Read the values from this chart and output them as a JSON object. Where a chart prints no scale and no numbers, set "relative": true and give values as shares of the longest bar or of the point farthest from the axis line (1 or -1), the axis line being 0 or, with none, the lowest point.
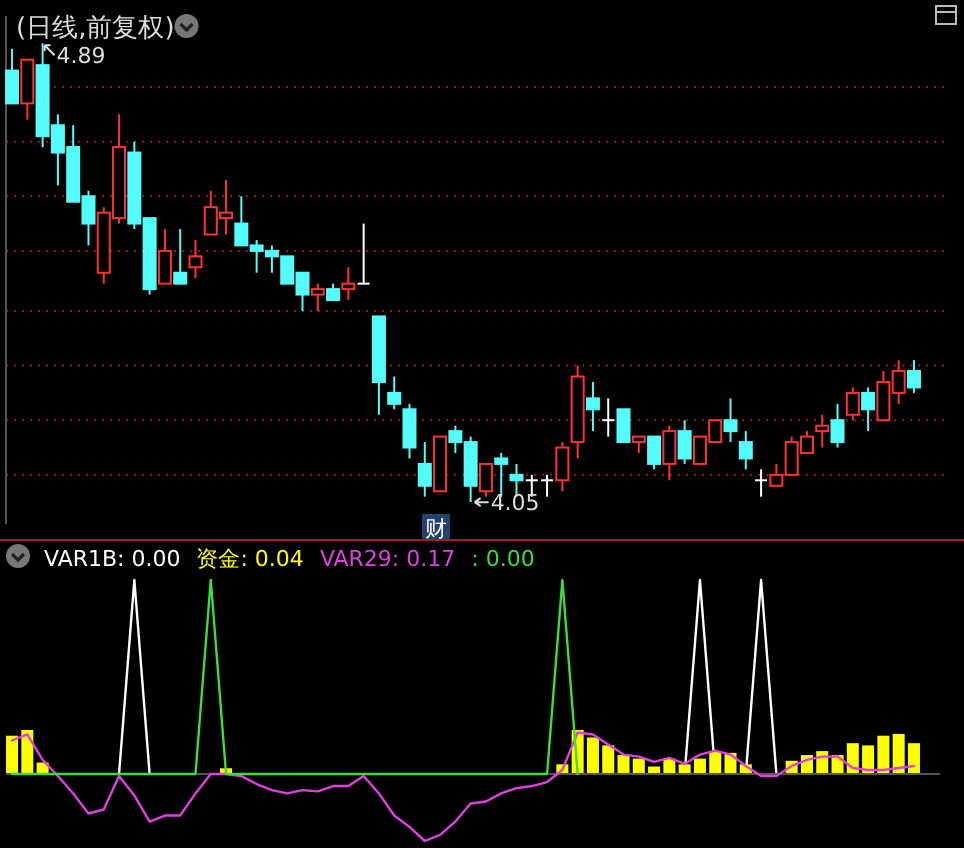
{
  "chart_data": [
    {
      "type": "candlestick",
      "title": "(日线,前复权)",
      "categories": [
        null,
        null,
        null,
        null,
        null,
        null,
        null,
        null,
        null,
        null,
        null,
        null,
        null,
        null,
        null,
        null,
        null,
        null,
        null,
        null,
        null,
        null,
        null,
        null,
        null,
        null,
        null,
        null,
        null,
        null,
        null,
        null,
        null,
        null,
        null,
        null,
        null,
        null,
        null,
        null,
        null,
        null,
        null,
        null,
        null,
        null,
        null,
        null,
        null,
        null,
        null,
        null,
        null,
        null,
        null,
        null,
        null,
        null,
        null,
        null
      ],
      "ohlc": [
        [
          4.84,
          4.88,
          4.78,
          4.78
        ],
        [
          4.78,
          4.86,
          4.75,
          4.86
        ],
        [
          4.85,
          4.89,
          4.7,
          4.72
        ],
        [
          4.74,
          4.76,
          4.63,
          4.69
        ],
        [
          4.7,
          4.74,
          4.6,
          4.6
        ],
        [
          4.61,
          4.62,
          4.52,
          4.56
        ],
        [
          4.47,
          4.59,
          4.45,
          4.58
        ],
        [
          4.57,
          4.76,
          4.56,
          4.7
        ],
        [
          4.69,
          4.71,
          4.55,
          4.56
        ],
        [
          4.57,
          4.57,
          4.43,
          4.44
        ],
        [
          4.45,
          4.55,
          4.45,
          4.51
        ],
        [
          4.47,
          4.55,
          4.45,
          4.45
        ],
        [
          4.48,
          4.53,
          4.46,
          4.5
        ],
        [
          4.54,
          4.62,
          4.54,
          4.59
        ],
        [
          4.57,
          4.64,
          4.54,
          4.58
        ],
        [
          4.56,
          4.61,
          4.52,
          4.52
        ],
        [
          4.52,
          4.53,
          4.47,
          4.51
        ],
        [
          4.51,
          4.52,
          4.47,
          4.5
        ],
        [
          4.5,
          4.5,
          4.45,
          4.45
        ],
        [
          4.47,
          4.47,
          4.4,
          4.43
        ],
        [
          4.43,
          4.45,
          4.4,
          4.44
        ],
        [
          4.44,
          4.45,
          4.42,
          4.42
        ],
        [
          4.44,
          4.48,
          4.42,
          4.45
        ],
        [
          4.45,
          4.56,
          4.45,
          4.45
        ],
        [
          4.39,
          4.39,
          4.21,
          4.27
        ],
        [
          4.25,
          4.28,
          4.22,
          4.23
        ],
        [
          4.22,
          4.23,
          4.13,
          4.15
        ],
        [
          4.12,
          4.16,
          4.06,
          4.08
        ],
        [
          4.07,
          4.17,
          4.07,
          4.17
        ],
        [
          4.18,
          4.19,
          4.14,
          4.16
        ],
        [
          4.16,
          4.17,
          4.05,
          4.08
        ],
        [
          4.07,
          4.12,
          4.06,
          4.12
        ],
        [
          4.13,
          4.14,
          4.06,
          4.12
        ],
        [
          4.1,
          4.12,
          4.06,
          4.09
        ],
        [
          4.09,
          4.1,
          4.06,
          4.09
        ],
        [
          4.09,
          4.1,
          4.06,
          4.09
        ],
        [
          4.09,
          4.16,
          4.07,
          4.15
        ],
        [
          4.16,
          4.3,
          4.13,
          4.28
        ],
        [
          4.24,
          4.27,
          4.18,
          4.22
        ],
        [
          4.2,
          4.24,
          4.17,
          4.2
        ],
        [
          4.22,
          4.22,
          4.16,
          4.16
        ],
        [
          4.16,
          4.17,
          4.14,
          4.17
        ],
        [
          4.17,
          4.17,
          4.11,
          4.12
        ],
        [
          4.12,
          4.19,
          4.09,
          4.18
        ],
        [
          4.18,
          4.2,
          4.12,
          4.13
        ],
        [
          4.12,
          4.17,
          4.12,
          4.17
        ],
        [
          4.16,
          4.2,
          4.16,
          4.2
        ],
        [
          4.2,
          4.24,
          4.16,
          4.18
        ],
        [
          4.16,
          4.18,
          4.11,
          4.13
        ],
        [
          4.09,
          4.11,
          4.06,
          4.09
        ],
        [
          4.08,
          4.12,
          4.08,
          4.1
        ],
        [
          4.1,
          4.17,
          4.1,
          4.16
        ],
        [
          4.14,
          4.18,
          4.14,
          4.17
        ],
        [
          4.18,
          4.21,
          4.15,
          4.19
        ],
        [
          4.2,
          4.23,
          4.15,
          4.16
        ],
        [
          4.21,
          4.26,
          4.2,
          4.25
        ],
        [
          4.25,
          4.26,
          4.18,
          4.22
        ],
        [
          4.2,
          4.29,
          4.2,
          4.27
        ],
        [
          4.25,
          4.31,
          4.23,
          4.29
        ],
        [
          4.29,
          4.31,
          4.25,
          4.26
        ]
      ],
      "colors": [
        "#54fcfc",
        "#ff3232",
        "#54fcfc",
        "#54fcfc",
        "#54fcfc",
        "#54fcfc",
        "#ff3232",
        "#ff3232",
        "#54fcfc",
        "#54fcfc",
        "#ff3232",
        "#54fcfc",
        "#ff3232",
        "#ff3232",
        "#ff3232",
        "#54fcfc",
        "#54fcfc",
        "#54fcfc",
        "#54fcfc",
        "#54fcfc",
        "#ff3232",
        "#54fcfc",
        "#ff3232",
        "#ffffff",
        "#54fcfc",
        "#54fcfc",
        "#54fcfc",
        "#54fcfc",
        "#ff3232",
        "#54fcfc",
        "#54fcfc",
        "#ff3232",
        "#54fcfc",
        "#54fcfc",
        "#ffffff",
        "#ffffff",
        "#ff3232",
        "#ff3232",
        "#54fcfc",
        "#ffffff",
        "#54fcfc",
        "#ff3232",
        "#54fcfc",
        "#ff3232",
        "#54fcfc",
        "#ff3232",
        "#ff3232",
        "#54fcfc",
        "#54fcfc",
        "#ffffff",
        "#ff3232",
        "#ff3232",
        "#ff3232",
        "#ff3232",
        "#54fcfc",
        "#ff3232",
        "#54fcfc",
        "#ff3232",
        "#ff3232",
        "#54fcfc"
      ],
      "ylim": [
        4.01,
        4.94
      ],
      "yticks": [
        {
          "value": 4.81,
          "label": null
        },
        {
          "value": 4.71,
          "label": null
        },
        {
          "value": 4.61,
          "label": null
        },
        {
          "value": 4.51,
          "label": null
        },
        {
          "value": 4.4,
          "label": null
        },
        {
          "value": 4.3,
          "label": null
        },
        {
          "value": 4.2,
          "label": null
        },
        {
          "value": 4.1,
          "label": null
        }
      ],
      "grid": true,
      "annotations": [
        "4.89",
        "4.05",
        "财"
      ]
    },
    {
      "type": "line",
      "relative": true,
      "legend": "top left",
      "categories": [
        null,
        null,
        null,
        null,
        null,
        null,
        null,
        null,
        null,
        null,
        null,
        null,
        null,
        null,
        null,
        null,
        null,
        null,
        null,
        null,
        null,
        null,
        null,
        null,
        null,
        null,
        null,
        null,
        null,
        null,
        null,
        null,
        null,
        null,
        null,
        null,
        null,
        null,
        null,
        null,
        null,
        null,
        null,
        null,
        null,
        null,
        null,
        null,
        null,
        null,
        null,
        null,
        null,
        null,
        null,
        null,
        null,
        null,
        null,
        null
      ],
      "series": [
        {
          "name": "VAR1B: 0.00",
          "color": "#ffffff",
          "values": [
            null,
            null,
            null,
            null,
            null,
            null,
            null,
            0,
            1,
            0,
            null,
            null,
            null,
            null,
            null,
            null,
            null,
            null,
            null,
            null,
            null,
            null,
            null,
            null,
            null,
            null,
            null,
            null,
            null,
            null,
            null,
            null,
            null,
            null,
            null,
            null,
            null,
            null,
            null,
            null,
            null,
            null,
            null,
            null,
            0,
            1,
            0,
            null,
            0,
            1,
            0,
            null,
            null,
            null,
            null,
            null,
            null,
            null,
            null,
            null
          ]
        }
      ]
    },
    {
      "type": "bar",
      "relative": true,
      "legend": "top left",
      "categories": [
        null,
        null,
        null,
        null,
        null,
        null,
        null,
        null,
        null,
        null,
        null,
        null,
        null,
        null,
        null,
        null,
        null,
        null,
        null,
        null,
        null,
        null,
        null,
        null,
        null,
        null,
        null,
        null,
        null,
        null,
        null,
        null,
        null,
        null,
        null,
        null,
        null,
        null,
        null,
        null,
        null,
        null,
        null,
        null,
        null,
        null,
        null,
        null,
        null,
        null,
        null,
        null,
        null,
        null,
        null,
        null,
        null,
        null,
        null,
        null
      ],
      "series": [
        {
          "name": "资金: 0.04",
          "color": "#ffff00",
          "values": [
            0.87,
            1,
            0.26,
            0,
            0,
            0,
            0,
            0,
            0,
            0,
            0,
            0,
            0,
            0,
            0.13,
            0,
            0,
            0,
            0,
            0,
            0,
            0,
            0,
            0,
            0,
            0,
            0,
            0,
            0,
            0,
            0,
            0,
            0,
            0,
            0,
            0,
            0.22,
            1,
            0.83,
            0.65,
            0.43,
            0.35,
            0.17,
            0.35,
            0.22,
            0.35,
            0.52,
            0.48,
            0.22,
            0,
            0,
            0.3,
            0.43,
            0.52,
            0.43,
            0.7,
            0.65,
            0.87,
            0.91,
            0.7
          ]
        }
      ]
    },
    {
      "type": "line",
      "relative": true,
      "legend": "top left",
      "categories": [
        null,
        null,
        null,
        null,
        null,
        null,
        null,
        null,
        null,
        null,
        null,
        null,
        null,
        null,
        null,
        null,
        null,
        null,
        null,
        null,
        null,
        null,
        null,
        null,
        null,
        null,
        null,
        null,
        null,
        null,
        null,
        null,
        null,
        null,
        null,
        null,
        null,
        null,
        null,
        null,
        null,
        null,
        null,
        null,
        null,
        null,
        null,
        null,
        null,
        null,
        null,
        null,
        null,
        null,
        null,
        null,
        null,
        null,
        null,
        null
      ],
      "series": [
        {
          "name": "VAR29: 0.17",
          "color": "#e040e0",
          "values": [
            0.5,
            0.59,
            0.21,
            -0.03,
            -0.29,
            -0.59,
            -0.53,
            -0.03,
            -0.32,
            -0.71,
            -0.62,
            -0.62,
            -0.29,
            0,
            0,
            -0.03,
            -0.15,
            -0.24,
            -0.29,
            -0.24,
            -0.26,
            -0.18,
            -0.18,
            -0.03,
            -0.29,
            -0.62,
            -0.79,
            -1,
            -0.91,
            -0.71,
            -0.44,
            -0.41,
            -0.29,
            -0.21,
            -0.18,
            -0.12,
            0.06,
            0.62,
            0.59,
            0.44,
            0.29,
            0.26,
            0.18,
            0.24,
            0.15,
            0.29,
            0.35,
            0.29,
            0.12,
            -0.03,
            -0.03,
            0.12,
            0.21,
            0.26,
            0.26,
            0.09,
            0.06,
            0.06,
            0.09,
            0.12
          ]
        }
      ]
    },
    {
      "type": "line",
      "relative": true,
      "legend": "top left",
      "categories": [
        null,
        null,
        null,
        null,
        null,
        null,
        null,
        null,
        null,
        null,
        null,
        null,
        null,
        null,
        null,
        null,
        null,
        null,
        null,
        null,
        null,
        null,
        null,
        null,
        null,
        null,
        null,
        null,
        null,
        null,
        null,
        null,
        null,
        null,
        null,
        null,
        null,
        null,
        null,
        null,
        null,
        null,
        null,
        null,
        null,
        null,
        null,
        null,
        null,
        null,
        null,
        null,
        null,
        null,
        null,
        null,
        null,
        null,
        null,
        null
      ],
      "series": [
        {
          "name": ": 0.00",
          "color": "#3cdc3c",
          "values": [
            0,
            0,
            0,
            0,
            0,
            0,
            0,
            0,
            0,
            0,
            0,
            0,
            0,
            1,
            0,
            0,
            0,
            0,
            0,
            0,
            0,
            0,
            0,
            0,
            0,
            0,
            0,
            0,
            0,
            0,
            0,
            0,
            0,
            0,
            0,
            0,
            1,
            0,
            null,
            null,
            null,
            null,
            null,
            null,
            null,
            null,
            null,
            null,
            null,
            null,
            null,
            null,
            null,
            null,
            null,
            null,
            null,
            null,
            null,
            null
          ]
        }
      ]
    }
  ]
}
